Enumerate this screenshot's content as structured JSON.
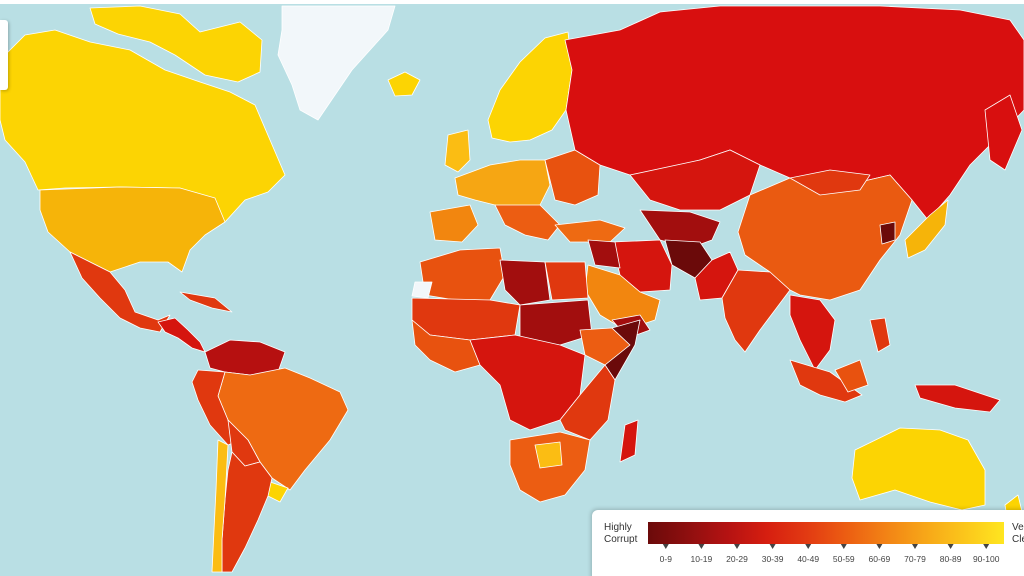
{
  "legend": {
    "left_label_line1": "Highly",
    "left_label_line2": "Corrupt",
    "right_label_line1": "Very",
    "right_label_line2": "Clean",
    "bins": [
      {
        "label": "0-9",
        "color": "#6b0a0a"
      },
      {
        "label": "10-19",
        "color": "#8e0f0f"
      },
      {
        "label": "20-29",
        "color": "#b41212"
      },
      {
        "label": "30-39",
        "color": "#d61e10"
      },
      {
        "label": "40-49",
        "color": "#e23a12"
      },
      {
        "label": "50-59",
        "color": "#ec5d12"
      },
      {
        "label": "60-69",
        "color": "#f28215"
      },
      {
        "label": "70-79",
        "color": "#f7a618"
      },
      {
        "label": "80-89",
        "color": "#fbc61b"
      },
      {
        "label": "90-100",
        "color": "#ffe620"
      }
    ]
  },
  "colors": {
    "ocean": "#b9dfe4",
    "no_data": "#f2f7fa",
    "border": "#ffffff"
  }
}
